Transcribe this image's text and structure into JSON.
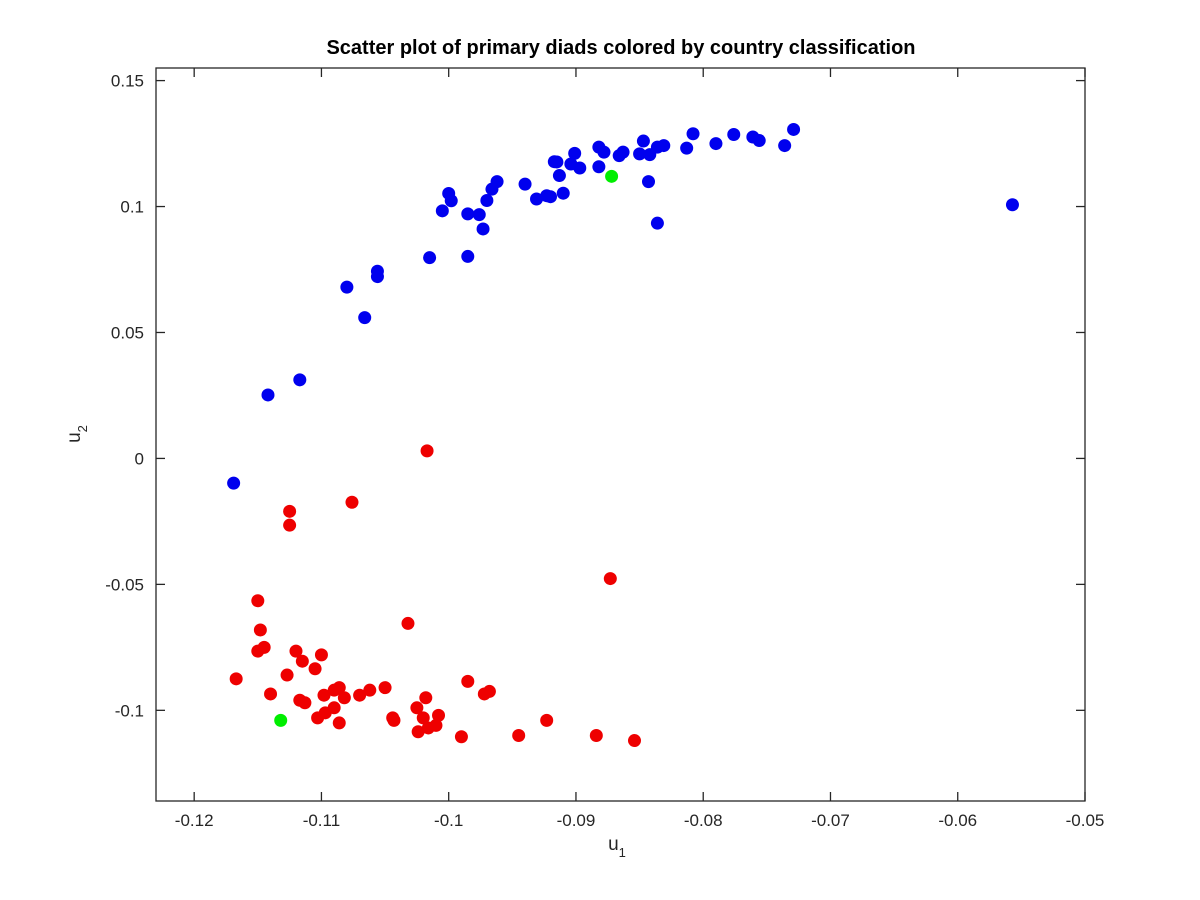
{
  "chart_data": {
    "type": "scatter",
    "title": "Scatter plot of primary diads colored by country classification",
    "xlabel_base": "u",
    "xlabel_sub": "1",
    "ylabel_base": "u",
    "ylabel_sub": "2",
    "xlim": [
      -0.123,
      -0.05
    ],
    "ylim": [
      -0.136,
      0.155
    ],
    "xticks": [
      -0.12,
      -0.11,
      -0.1,
      -0.09,
      -0.08,
      -0.07,
      -0.06,
      -0.05
    ],
    "xtick_labels": [
      "-0.12",
      "-0.11",
      "-0.1",
      "-0.09",
      "-0.08",
      "-0.07",
      "-0.06",
      "-0.05"
    ],
    "yticks": [
      -0.1,
      -0.05,
      0,
      0.05,
      0.1,
      0.15
    ],
    "ytick_labels": [
      "-0.1",
      "-0.05",
      "0",
      "0.05",
      "0.1",
      "0.15"
    ],
    "grid": false,
    "series": [
      {
        "color": "#0000ee",
        "points": [
          [
            -0.0557,
            0.1007
          ],
          [
            -0.0729,
            0.1306
          ],
          [
            -0.0736,
            0.1242
          ],
          [
            -0.0756,
            0.1262
          ],
          [
            -0.0761,
            0.1276
          ],
          [
            -0.0776,
            0.1286
          ],
          [
            -0.079,
            0.125
          ],
          [
            -0.0808,
            0.1289
          ],
          [
            -0.0813,
            0.1232
          ],
          [
            -0.0831,
            0.1242
          ],
          [
            -0.0836,
            0.1236
          ],
          [
            -0.0842,
            0.1206
          ],
          [
            -0.0847,
            0.126
          ],
          [
            -0.085,
            0.1209
          ],
          [
            -0.0843,
            0.1099
          ],
          [
            -0.0836,
            0.0934
          ],
          [
            -0.0863,
            0.1216
          ],
          [
            -0.0866,
            0.1202
          ],
          [
            -0.0878,
            0.1216
          ],
          [
            -0.0882,
            0.1236
          ],
          [
            -0.0882,
            0.1158
          ],
          [
            -0.0897,
            0.1153
          ],
          [
            -0.0901,
            0.1211
          ],
          [
            -0.0904,
            0.1169
          ],
          [
            -0.0915,
            0.1177
          ],
          [
            -0.0913,
            0.1123
          ],
          [
            -0.091,
            0.1053
          ],
          [
            -0.0917,
            0.1178
          ],
          [
            -0.092,
            0.1039
          ],
          [
            -0.0923,
            0.1043
          ],
          [
            -0.0931,
            0.103
          ],
          [
            -0.094,
            0.1089
          ],
          [
            -0.0962,
            0.1099
          ],
          [
            -0.0966,
            0.1069
          ],
          [
            -0.097,
            0.1024
          ],
          [
            -0.0973,
            0.0911
          ],
          [
            -0.0976,
            0.0968
          ],
          [
            -0.0985,
            0.0971
          ],
          [
            -0.0985,
            0.0802
          ],
          [
            -0.0998,
            0.1023
          ],
          [
            -0.1,
            0.1052
          ],
          [
            -0.1005,
            0.0983
          ],
          [
            -0.1015,
            0.0797
          ],
          [
            -0.1056,
            0.0722
          ],
          [
            -0.1056,
            0.0743
          ],
          [
            -0.1066,
            0.0559
          ],
          [
            -0.108,
            0.068
          ],
          [
            -0.1117,
            0.0312
          ],
          [
            -0.1142,
            0.0252
          ],
          [
            -0.1169,
            -0.0098
          ]
        ]
      },
      {
        "color": "#ee0000",
        "points": [
          [
            -0.1017,
            0.003
          ],
          [
            -0.1076,
            -0.0174
          ],
          [
            -0.1125,
            -0.021
          ],
          [
            -0.1125,
            -0.0265
          ],
          [
            -0.0873,
            -0.0477
          ],
          [
            -0.115,
            -0.0565
          ],
          [
            -0.1148,
            -0.0681
          ],
          [
            -0.1032,
            -0.0655
          ],
          [
            -0.115,
            -0.0765
          ],
          [
            -0.1145,
            -0.075
          ],
          [
            -0.112,
            -0.0765
          ],
          [
            -0.1115,
            -0.0805
          ],
          [
            -0.11,
            -0.078
          ],
          [
            -0.1105,
            -0.0835
          ],
          [
            -0.1127,
            -0.086
          ],
          [
            -0.1167,
            -0.0875
          ],
          [
            -0.114,
            -0.0935
          ],
          [
            -0.1117,
            -0.096
          ],
          [
            -0.1113,
            -0.097
          ],
          [
            -0.1098,
            -0.094
          ],
          [
            -0.109,
            -0.092
          ],
          [
            -0.1086,
            -0.091
          ],
          [
            -0.1082,
            -0.095
          ],
          [
            -0.109,
            -0.099
          ],
          [
            -0.1097,
            -0.101
          ],
          [
            -0.1103,
            -0.103
          ],
          [
            -0.1086,
            -0.105
          ],
          [
            -0.107,
            -0.094
          ],
          [
            -0.1062,
            -0.092
          ],
          [
            -0.105,
            -0.091
          ],
          [
            -0.1044,
            -0.103
          ],
          [
            -0.1043,
            -0.104
          ],
          [
            -0.1025,
            -0.099
          ],
          [
            -0.102,
            -0.103
          ],
          [
            -0.1018,
            -0.095
          ],
          [
            -0.1016,
            -0.107
          ],
          [
            -0.101,
            -0.106
          ],
          [
            -0.1008,
            -0.102
          ],
          [
            -0.1024,
            -0.1085
          ],
          [
            -0.099,
            -0.1105
          ],
          [
            -0.0985,
            -0.0885
          ],
          [
            -0.0972,
            -0.0935
          ],
          [
            -0.0968,
            -0.0925
          ],
          [
            -0.0945,
            -0.11
          ],
          [
            -0.0923,
            -0.104
          ],
          [
            -0.0884,
            -0.11
          ],
          [
            -0.0854,
            -0.112
          ]
        ]
      },
      {
        "color": "#00ee00",
        "points": [
          [
            -0.0872,
            0.112
          ],
          [
            -0.1132,
            -0.104
          ]
        ]
      }
    ]
  }
}
